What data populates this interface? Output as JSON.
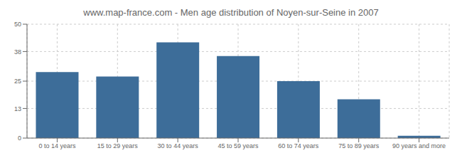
{
  "chart_data": {
    "type": "bar",
    "title": "www.map-france.com - Men age distribution of Noyen-sur-Seine in 2007",
    "categories": [
      "0 to 14 years",
      "15 to 29 years",
      "30 to 44 years",
      "45 to 59 years",
      "60 to 74 years",
      "75 to 89 years",
      "90 years and more"
    ],
    "values": [
      29,
      27,
      42,
      36,
      25,
      17,
      1
    ],
    "color": "#3d6d99",
    "ylim": [
      0,
      50
    ],
    "yticks": [
      0,
      13,
      25,
      38,
      50
    ],
    "grid": true
  }
}
